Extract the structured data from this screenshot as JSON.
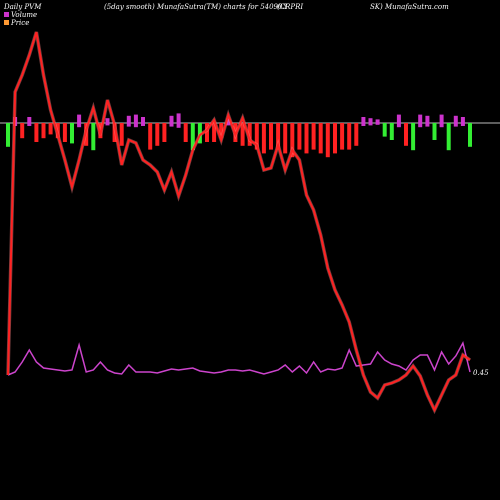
{
  "header": {
    "left": "Daily PVM",
    "center": "(5day smooth) MunafaSutra(TM) charts for 540903",
    "right_a": "(CRPRI",
    "right_b": "SK) MunafaSutra.com"
  },
  "legend": [
    {
      "label": "Volume",
      "color": "#cc33cc"
    },
    {
      "label": "Price",
      "color": "#ff9933"
    }
  ],
  "colors": {
    "background": "#000000",
    "baseline": "#cccccc",
    "price": "#ff2222",
    "pvm": "#cc44cc",
    "bar_up": "#33ee33",
    "bar_down": "#ff2222",
    "bar_neutral": "#cc33cc"
  },
  "chart_data": {
    "type": "line",
    "title": "Daily PVM (5day smooth) MunafaSutra(TM) charts for 540903 (CRPRISK)",
    "n": 66,
    "price_series": [
      375,
      92,
      75,
      55,
      32,
      75,
      110,
      135,
      160,
      187,
      160,
      130,
      108,
      135,
      100,
      125,
      165,
      140,
      143,
      160,
      165,
      172,
      190,
      172,
      196,
      175,
      150,
      135,
      130,
      120,
      140,
      115,
      135,
      118,
      140,
      145,
      170,
      168,
      145,
      170,
      150,
      160,
      195,
      210,
      235,
      268,
      290,
      305,
      322,
      350,
      375,
      392,
      398,
      385,
      383,
      380,
      375,
      366,
      376,
      395,
      410,
      395,
      380,
      375,
      355,
      360
    ],
    "pvm_series": [
      375,
      372,
      362,
      350,
      362,
      368,
      369,
      370,
      371,
      370,
      345,
      372,
      370,
      362,
      370,
      373,
      374,
      365,
      372,
      372,
      372,
      373,
      371,
      369,
      370,
      369,
      368,
      371,
      372,
      373,
      372,
      370,
      370,
      371,
      370,
      372,
      374,
      372,
      370,
      365,
      372,
      366,
      373,
      362,
      372,
      369,
      370,
      368,
      350,
      366,
      365,
      364,
      352,
      360,
      364,
      366,
      370,
      360,
      355,
      355,
      370,
      352,
      364,
      356,
      343,
      372
    ],
    "end_label": "0.45",
    "volume_bars": {
      "colors": [
        "g",
        "m",
        "r",
        "m",
        "r",
        "r",
        "r",
        "r",
        "r",
        "g",
        "m",
        "r",
        "g",
        "r",
        "m",
        "r",
        "r",
        "m",
        "m",
        "m",
        "r",
        "r",
        "r",
        "m",
        "m",
        "r",
        "g",
        "g",
        "r",
        "r",
        "r",
        "m",
        "r",
        "r",
        "r",
        "r",
        "r",
        "r",
        "r",
        "r",
        "r",
        "r",
        "r",
        "r",
        "r",
        "r",
        "r",
        "r",
        "r",
        "r",
        "m",
        "m",
        "m",
        "g",
        "g",
        "m",
        "r",
        "g",
        "m",
        "m",
        "g",
        "m",
        "g",
        "m",
        "m",
        "g"
      ],
      "magnitudes": [
        14,
        10,
        8,
        10,
        10,
        8,
        6,
        8,
        10,
        12,
        14,
        12,
        16,
        8,
        8,
        10,
        12,
        12,
        14,
        10,
        14,
        12,
        10,
        12,
        16,
        10,
        16,
        12,
        10,
        10,
        8,
        8,
        10,
        12,
        12,
        14,
        16,
        14,
        14,
        16,
        18,
        14,
        16,
        14,
        16,
        18,
        16,
        14,
        14,
        12,
        10,
        8,
        6,
        8,
        10,
        14,
        12,
        16,
        14,
        12,
        10,
        14,
        16,
        12,
        10,
        14
      ]
    }
  }
}
